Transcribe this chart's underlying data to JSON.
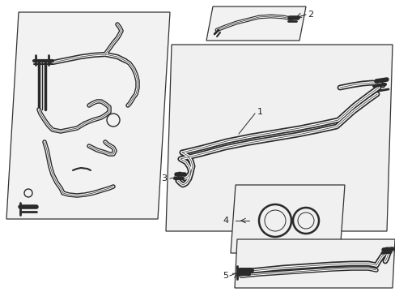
{
  "bg_color": "#ffffff",
  "line_color": "#2a2a2a",
  "panel_edge_color": "#333333",
  "label_color": "#222222",
  "figsize": [
    4.89,
    3.6
  ],
  "dpi": 100
}
